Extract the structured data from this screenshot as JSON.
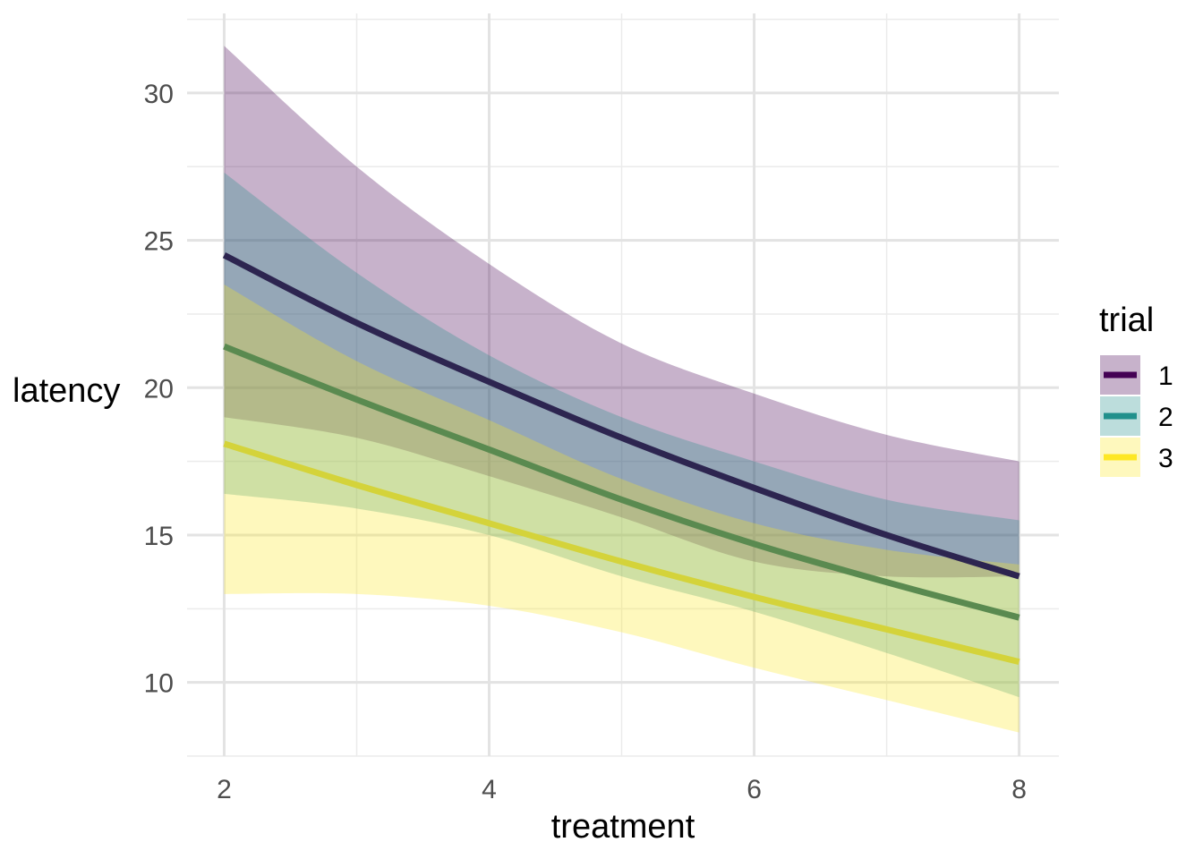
{
  "chart_data": {
    "type": "line",
    "xlabel": "treatment",
    "ylabel": "latency",
    "xlim": [
      1.72,
      8.3
    ],
    "ylim": [
      7.5,
      32.7
    ],
    "x_ticks": [
      2,
      4,
      6,
      8
    ],
    "x_tick_labels": [
      "2",
      "4",
      "6",
      "8"
    ],
    "y_ticks": [
      10,
      15,
      20,
      25,
      30
    ],
    "y_tick_labels": [
      "10",
      "15",
      "20",
      "25",
      "30"
    ],
    "grid": true,
    "legend": {
      "title": "trial",
      "position": "right"
    },
    "x": [
      2,
      3,
      4,
      5,
      6,
      7,
      8
    ],
    "series": [
      {
        "name": "1",
        "color": "#440154",
        "line_color": "#2d2550",
        "values": [
          24.5,
          22.2,
          20.2,
          18.3,
          16.6,
          15.0,
          13.6
        ],
        "lower": [
          19.0,
          18.3,
          17.0,
          15.6,
          14.1,
          13.6,
          13.6
        ],
        "upper": [
          31.6,
          27.5,
          24.2,
          21.5,
          19.8,
          18.4,
          17.5
        ]
      },
      {
        "name": "2",
        "color": "#21908C",
        "line_color": "#5a8a50",
        "values": [
          21.4,
          19.6,
          17.9,
          16.2,
          14.7,
          13.4,
          12.2
        ],
        "lower": [
          16.4,
          15.9,
          15.0,
          13.6,
          12.4,
          11.0,
          9.5
        ],
        "upper": [
          27.3,
          23.9,
          21.1,
          19.0,
          17.5,
          16.2,
          15.5
        ]
      },
      {
        "name": "3",
        "color": "#FDE725",
        "line_color": "#d4d33a",
        "values": [
          18.1,
          16.7,
          15.4,
          14.1,
          12.9,
          11.8,
          10.7
        ],
        "lower": [
          13.0,
          13.0,
          12.6,
          11.7,
          10.5,
          9.4,
          8.3
        ],
        "upper": [
          23.5,
          20.9,
          18.9,
          16.9,
          15.4,
          14.5,
          14.0
        ]
      }
    ]
  }
}
